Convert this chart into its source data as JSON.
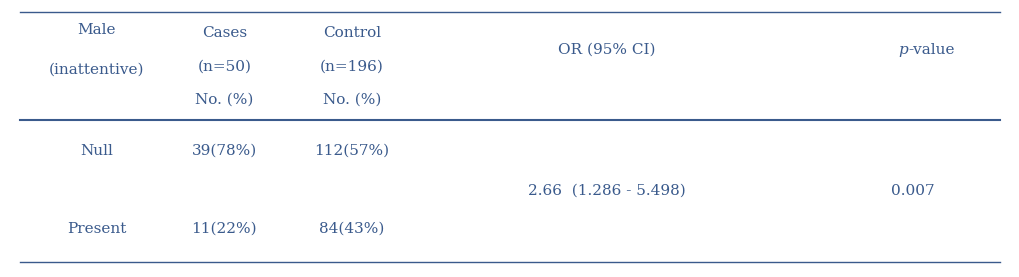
{
  "col1_header_line1": "Male",
  "col1_header_line2": "(inattentive)",
  "col2_header_line1": "Cases",
  "col2_header_line2": "(n=50)",
  "col3_header_line1": "Control",
  "col3_header_line2": "(n=196)",
  "col4_header": "OR (95% CI)",
  "col5_header_italic": "p",
  "col5_header_rest": "-value",
  "subheader_col2": "No. (%)",
  "subheader_col3": "No. (%)",
  "row1_label": "Null",
  "row1_cases": "39(78%)",
  "row1_control": "112(57%)",
  "row2_label": "Present",
  "row2_cases": "11(22%)",
  "row2_control": "84(43%)",
  "or_ci": "2.66  (1.286 - 5.498)",
  "pvalue": "0.007",
  "text_color": "#3a5a8c",
  "bg_color": "#ffffff",
  "font_size": 11,
  "fig_width": 10.2,
  "fig_height": 2.77,
  "dpi": 100
}
